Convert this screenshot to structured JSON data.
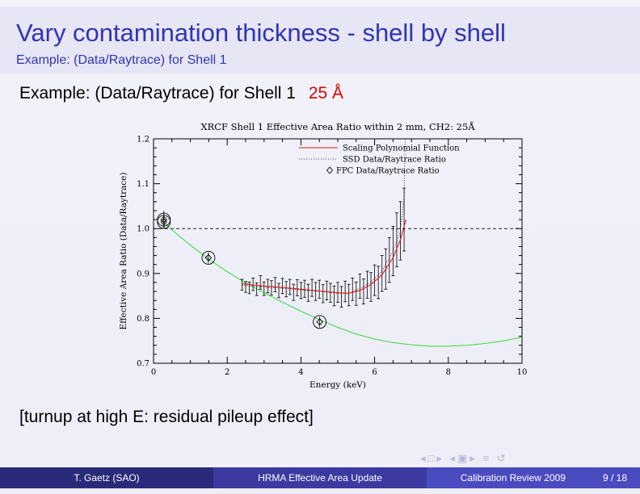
{
  "slide": {
    "title": "Vary contamination thickness - shell by shell",
    "subtitle": "Example: (Data/Raytrace) for Shell 1",
    "heading": "Example: (Data/Raytrace) for Shell 1",
    "heading_value": "25 Å",
    "note": "[turnup at high E: residual pileup effect]",
    "accent_color": "#3333b3",
    "highlight_color": "#e00000"
  },
  "footer": {
    "author": "T. Gaetz  (SAO)",
    "talk_title": "HRMA Effective Area Update",
    "event": "Calibration Review 2009",
    "page": "9 / 18"
  },
  "nav_icons": [
    "nav-left-icon",
    "nav-right-icon",
    "nav-frame-icon",
    "nav-section-icon",
    "nav-align-icon",
    "search-icon"
  ],
  "chart_data": {
    "type": "scatter",
    "title": "XRCF Shell 1 Effective Area Ratio within 2 mm, CH2: 25Å",
    "xlabel": "Energy (keV)",
    "ylabel": "Effective Area Ratio (Data/Raytrace)",
    "xlim": [
      0,
      10
    ],
    "ylim": [
      0.7,
      1.2
    ],
    "xticks": [
      "0",
      "2",
      "4",
      "6",
      "8",
      "10"
    ],
    "yticks": [
      "0.7",
      "0.8",
      "0.9",
      "1.0",
      "1.1",
      "1.2"
    ],
    "reference_line": 1.0,
    "legend_position": "top-right",
    "legend": [
      "Scaling Polynomial Function",
      "SSD Data/Raytrace Ratio",
      "FPC Data/Raytrace Ratio"
    ],
    "fpc_points": [
      {
        "x": 0.28,
        "y": 1.02,
        "err": 0.02
      },
      {
        "x": 0.28,
        "y": 1.015,
        "err": 0.015
      },
      {
        "x": 1.49,
        "y": 0.935,
        "err": 0.012
      },
      {
        "x": 4.51,
        "y": 0.792,
        "err": 0.012
      }
    ],
    "ssd_points": [
      {
        "x": 2.4,
        "y": 0.875,
        "err": 0.012
      },
      {
        "x": 2.5,
        "y": 0.87,
        "err": 0.012
      },
      {
        "x": 2.6,
        "y": 0.868,
        "err": 0.013
      },
      {
        "x": 2.7,
        "y": 0.876,
        "err": 0.014
      },
      {
        "x": 2.8,
        "y": 0.865,
        "err": 0.014
      },
      {
        "x": 2.9,
        "y": 0.88,
        "err": 0.015
      },
      {
        "x": 3.0,
        "y": 0.866,
        "err": 0.015
      },
      {
        "x": 3.1,
        "y": 0.872,
        "err": 0.015
      },
      {
        "x": 3.2,
        "y": 0.868,
        "err": 0.016
      },
      {
        "x": 3.3,
        "y": 0.875,
        "err": 0.016
      },
      {
        "x": 3.4,
        "y": 0.862,
        "err": 0.016
      },
      {
        "x": 3.5,
        "y": 0.872,
        "err": 0.017
      },
      {
        "x": 3.6,
        "y": 0.865,
        "err": 0.017
      },
      {
        "x": 3.7,
        "y": 0.87,
        "err": 0.017
      },
      {
        "x": 3.8,
        "y": 0.858,
        "err": 0.018
      },
      {
        "x": 3.9,
        "y": 0.868,
        "err": 0.018
      },
      {
        "x": 4.0,
        "y": 0.862,
        "err": 0.018
      },
      {
        "x": 4.1,
        "y": 0.866,
        "err": 0.019
      },
      {
        "x": 4.2,
        "y": 0.857,
        "err": 0.019
      },
      {
        "x": 4.3,
        "y": 0.868,
        "err": 0.019
      },
      {
        "x": 4.4,
        "y": 0.86,
        "err": 0.02
      },
      {
        "x": 4.5,
        "y": 0.865,
        "err": 0.02
      },
      {
        "x": 4.6,
        "y": 0.855,
        "err": 0.02
      },
      {
        "x": 4.7,
        "y": 0.862,
        "err": 0.021
      },
      {
        "x": 4.8,
        "y": 0.857,
        "err": 0.021
      },
      {
        "x": 4.9,
        "y": 0.85,
        "err": 0.022
      },
      {
        "x": 5.0,
        "y": 0.858,
        "err": 0.022
      },
      {
        "x": 5.1,
        "y": 0.848,
        "err": 0.023
      },
      {
        "x": 5.2,
        "y": 0.86,
        "err": 0.023
      },
      {
        "x": 5.3,
        "y": 0.852,
        "err": 0.024
      },
      {
        "x": 5.4,
        "y": 0.865,
        "err": 0.025
      },
      {
        "x": 5.5,
        "y": 0.855,
        "err": 0.026
      },
      {
        "x": 5.6,
        "y": 0.872,
        "err": 0.027
      },
      {
        "x": 5.7,
        "y": 0.86,
        "err": 0.028
      },
      {
        "x": 5.8,
        "y": 0.875,
        "err": 0.03
      },
      {
        "x": 5.9,
        "y": 0.87,
        "err": 0.032
      },
      {
        "x": 6.0,
        "y": 0.885,
        "err": 0.034
      },
      {
        "x": 6.1,
        "y": 0.88,
        "err": 0.036
      },
      {
        "x": 6.2,
        "y": 0.9,
        "err": 0.04
      },
      {
        "x": 6.3,
        "y": 0.91,
        "err": 0.045
      },
      {
        "x": 6.4,
        "y": 0.93,
        "err": 0.05
      },
      {
        "x": 6.5,
        "y": 0.95,
        "err": 0.055
      },
      {
        "x": 6.6,
        "y": 0.975,
        "err": 0.06
      },
      {
        "x": 6.7,
        "y": 0.995,
        "err": 0.065
      },
      {
        "x": 6.8,
        "y": 1.02,
        "err": 0.07
      }
    ],
    "ssd_ratio_line": [
      {
        "x": 2.4,
        "y": 0.874
      },
      {
        "x": 3.0,
        "y": 0.869
      },
      {
        "x": 3.5,
        "y": 0.867
      },
      {
        "x": 4.0,
        "y": 0.863
      },
      {
        "x": 4.5,
        "y": 0.86
      },
      {
        "x": 5.0,
        "y": 0.856
      },
      {
        "x": 5.3,
        "y": 0.856
      },
      {
        "x": 5.6,
        "y": 0.866
      },
      {
        "x": 5.9,
        "y": 0.88
      },
      {
        "x": 6.2,
        "y": 0.905
      },
      {
        "x": 6.5,
        "y": 0.95
      },
      {
        "x": 6.7,
        "y": 0.995
      },
      {
        "x": 6.8,
        "y": 1.07
      },
      {
        "x": 6.83,
        "y": 1.2
      }
    ],
    "red_fit_curve": [
      {
        "x": 2.4,
        "y": 0.877
      },
      {
        "x": 3.0,
        "y": 0.872
      },
      {
        "x": 3.5,
        "y": 0.869
      },
      {
        "x": 4.0,
        "y": 0.865
      },
      {
        "x": 4.5,
        "y": 0.861
      },
      {
        "x": 5.0,
        "y": 0.857
      },
      {
        "x": 5.3,
        "y": 0.856
      },
      {
        "x": 5.6,
        "y": 0.862
      },
      {
        "x": 5.9,
        "y": 0.875
      },
      {
        "x": 6.2,
        "y": 0.897
      },
      {
        "x": 6.5,
        "y": 0.935
      },
      {
        "x": 6.7,
        "y": 0.975
      },
      {
        "x": 6.85,
        "y": 1.02
      }
    ],
    "green_curve": [
      {
        "x": 0.25,
        "y": 1.015
      },
      {
        "x": 0.5,
        "y": 0.997
      },
      {
        "x": 1.0,
        "y": 0.963
      },
      {
        "x": 1.5,
        "y": 0.932
      },
      {
        "x": 2.0,
        "y": 0.904
      },
      {
        "x": 2.5,
        "y": 0.879
      },
      {
        "x": 3.0,
        "y": 0.857
      },
      {
        "x": 3.5,
        "y": 0.836
      },
      {
        "x": 4.0,
        "y": 0.816
      },
      {
        "x": 4.5,
        "y": 0.797
      },
      {
        "x": 5.0,
        "y": 0.78
      },
      {
        "x": 5.5,
        "y": 0.765
      },
      {
        "x": 6.0,
        "y": 0.754
      },
      {
        "x": 6.5,
        "y": 0.746
      },
      {
        "x": 7.0,
        "y": 0.741
      },
      {
        "x": 7.5,
        "y": 0.738
      },
      {
        "x": 8.0,
        "y": 0.738
      },
      {
        "x": 8.5,
        "y": 0.74
      },
      {
        "x": 9.0,
        "y": 0.744
      },
      {
        "x": 9.5,
        "y": 0.75
      },
      {
        "x": 10.0,
        "y": 0.758
      }
    ],
    "colors": {
      "fit": "#e01818",
      "curve": "#38d838",
      "axis": "#000000"
    }
  }
}
